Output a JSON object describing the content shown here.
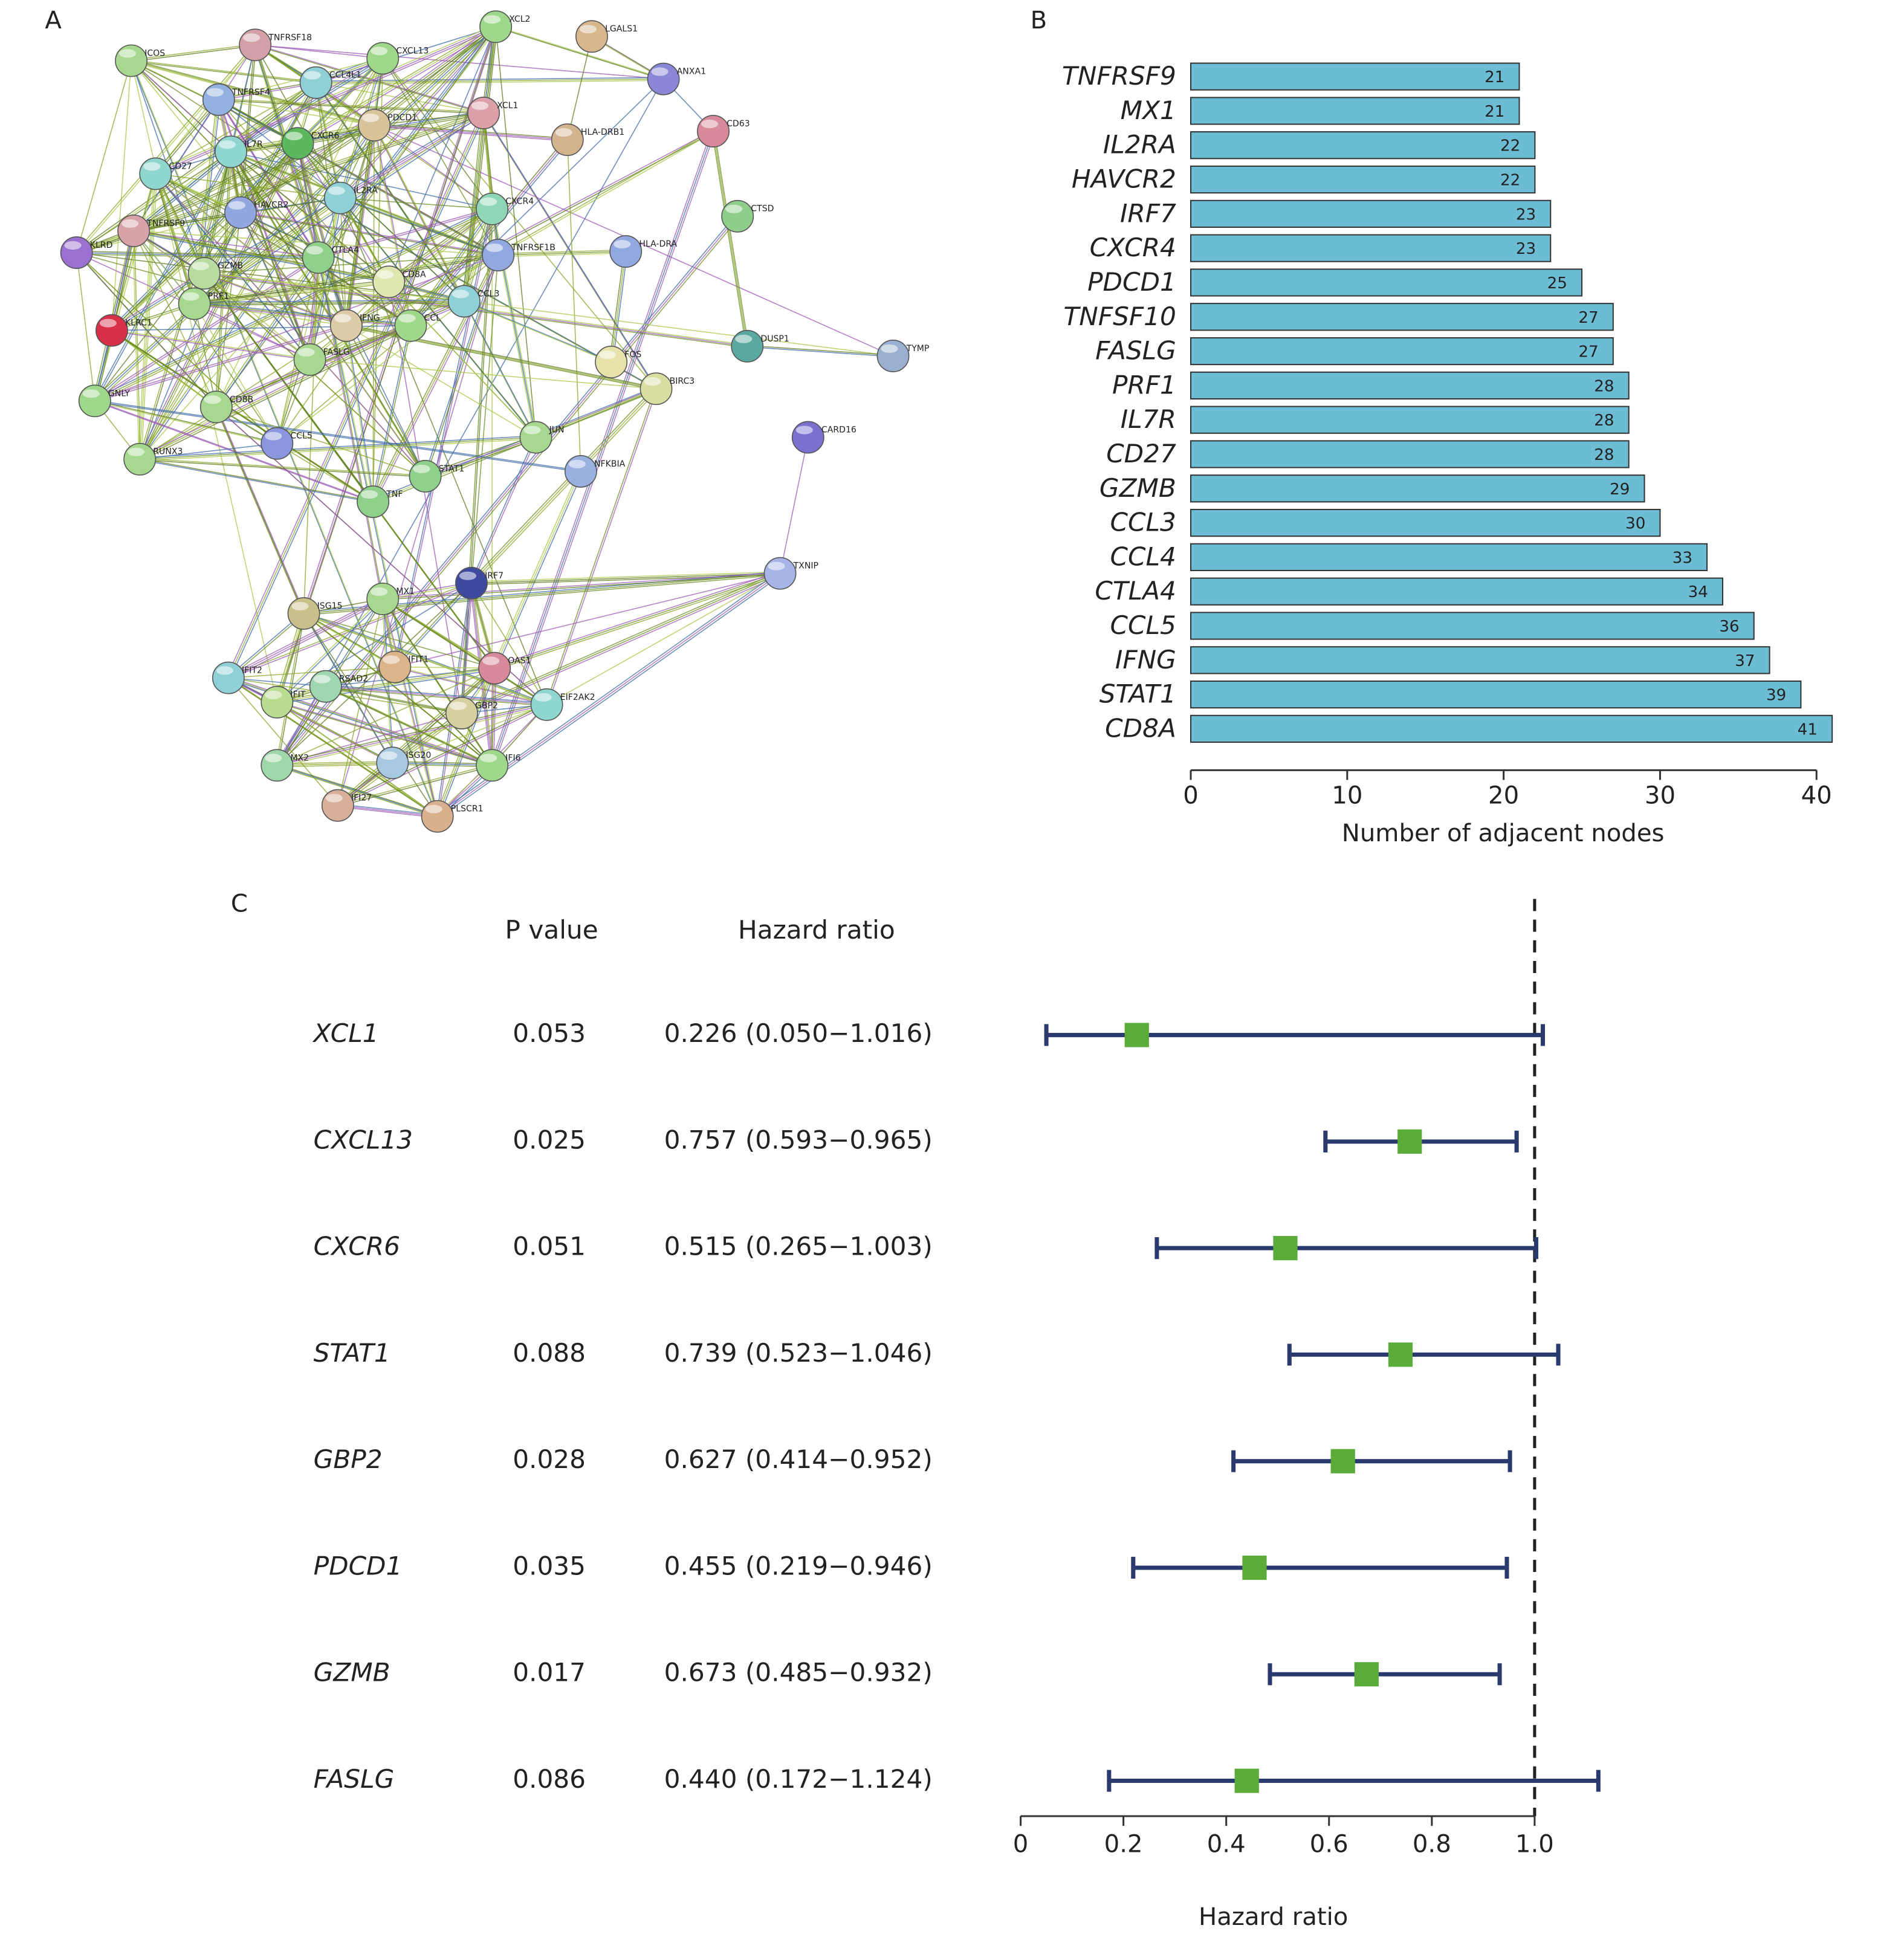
{
  "chart_data": [
    {
      "type": "network",
      "panel": "A",
      "nodes": [
        {
          "label": "ICOS",
          "color": "#a6d98f"
        },
        {
          "label": "TNFRSF18",
          "color": "#d3a0a8"
        },
        {
          "label": "CCL4L1",
          "color": "#8fd0d6"
        },
        {
          "label": "CXCL13",
          "color": "#9fd88a"
        },
        {
          "label": "XCL2",
          "color": "#9fd88a"
        },
        {
          "label": "LGALS1",
          "color": "#d8b68e"
        },
        {
          "label": "ANXA1",
          "color": "#8a86d8"
        },
        {
          "label": "TNFRSF4",
          "color": "#92b0e0"
        },
        {
          "label": "IL7R",
          "color": "#8fd6cf"
        },
        {
          "label": "CXCR6",
          "color": "#5cb85c"
        },
        {
          "label": "PDCD1",
          "color": "#d9c39a"
        },
        {
          "label": "XCL1",
          "color": "#dba0a8"
        },
        {
          "label": "HLA-DRB1",
          "color": "#d4b48f"
        },
        {
          "label": "CD63",
          "color": "#d88a9a"
        },
        {
          "label": "CD27",
          "color": "#8fd6cf"
        },
        {
          "label": "HAVCR2",
          "color": "#92a6e0"
        },
        {
          "label": "IL2RA",
          "color": "#8fd0d6"
        },
        {
          "label": "CXCR4",
          "color": "#8fd6b6"
        },
        {
          "label": "CTSD",
          "color": "#8fce8a"
        },
        {
          "label": "KLRD",
          "color": "#9a70d0"
        },
        {
          "label": "TNFRSF9",
          "color": "#d8a3a8"
        },
        {
          "label": "CTLA4",
          "color": "#8fd08a"
        },
        {
          "label": "TNFRSF1B",
          "color": "#92a8e0"
        },
        {
          "label": "HLA-DRA",
          "color": "#92a8e0"
        },
        {
          "label": "GZMB",
          "color": "#b8dca0"
        },
        {
          "label": "CD8A",
          "color": "#dfe6b0"
        },
        {
          "label": "PRF1",
          "color": "#a6d98f"
        },
        {
          "label": "CCL3",
          "color": "#8fd0d6"
        },
        {
          "label": "KLRC1",
          "color": "#d83048"
        },
        {
          "label": "IFNG",
          "color": "#dccba6"
        },
        {
          "label": "CCL",
          "color": "#9fd88a"
        },
        {
          "label": "FASLG",
          "color": "#a6d98f"
        },
        {
          "label": "FOS",
          "color": "#e6e2aa"
        },
        {
          "label": "DUSP1",
          "color": "#5aa8a0"
        },
        {
          "label": "TYMP",
          "color": "#9ab0d0"
        },
        {
          "label": "BIRC3",
          "color": "#d8dea0"
        },
        {
          "label": "GNLY",
          "color": "#9fd88a"
        },
        {
          "label": "CD8B",
          "color": "#a6d98f"
        },
        {
          "label": "CCL5",
          "color": "#8a96de"
        },
        {
          "label": "JUN",
          "color": "#a6d98f"
        },
        {
          "label": "CARD16",
          "color": "#7a70d0"
        },
        {
          "label": "RUNX3",
          "color": "#a6d98f"
        },
        {
          "label": "NFKBIA",
          "color": "#9ab0e0"
        },
        {
          "label": "STAT1",
          "color": "#8fd08a"
        },
        {
          "label": "TNF",
          "color": "#8fd08a"
        },
        {
          "label": "TXNIP",
          "color": "#a6b4e6"
        },
        {
          "label": "IRF7",
          "color": "#3d4aa0"
        },
        {
          "label": "ISG15",
          "color": "#c8c08a"
        },
        {
          "label": "MX1",
          "color": "#a6d98f"
        },
        {
          "label": "IFIT2",
          "color": "#8fd0d6"
        },
        {
          "label": "IFIT1",
          "color": "#dcb48a"
        },
        {
          "label": "OAS1",
          "color": "#d88a9a"
        },
        {
          "label": "RSAD2",
          "color": "#9fd8b0"
        },
        {
          "label": "IFIT",
          "color": "#b8dc90"
        },
        {
          "label": "GBP2",
          "color": "#d6d0a0"
        },
        {
          "label": "EIF2AK2",
          "color": "#8fd6d0"
        },
        {
          "label": "MX2",
          "color": "#9fd8a8"
        },
        {
          "label": "ISG20",
          "color": "#a6c8e0"
        },
        {
          "label": "IFI6",
          "color": "#9fd88a"
        },
        {
          "label": "IFI27",
          "color": "#d8b09a"
        },
        {
          "label": "PLSCR1",
          "color": "#d8b08e"
        }
      ]
    },
    {
      "type": "barh",
      "panel": "B",
      "xlabel": "Number of adjacent nodes",
      "color": "#6cbcd4",
      "categories": [
        "TNFRSF9",
        "MX1",
        "IL2RA",
        "HAVCR2",
        "IRF7",
        "CXCR4",
        "PDCD1",
        "TNFSF10",
        "FASLG",
        "PRF1",
        "IL7R",
        "CD27",
        "GZMB",
        "CCL3",
        "CCL4",
        "CTLA4",
        "CCL5",
        "IFNG",
        "STAT1",
        "CD8A"
      ],
      "values": [
        21,
        21,
        22,
        22,
        23,
        23,
        25,
        27,
        27,
        28,
        28,
        28,
        29,
        30,
        33,
        34,
        36,
        37,
        39,
        41
      ],
      "xlim": [
        0,
        40
      ],
      "xticks": [
        0,
        10,
        20,
        30,
        40
      ]
    },
    {
      "type": "forest",
      "panel": "C",
      "xlabel": "Hazard ratio",
      "p_header": "P value",
      "hr_header": "Hazard ratio",
      "categories": [
        "XCL1",
        "CXCL13",
        "CXCR6",
        "STAT1",
        "GBP2",
        "PDCD1",
        "GZMB",
        "FASLG"
      ],
      "p_values": [
        0.053,
        0.025,
        0.051,
        0.088,
        0.028,
        0.035,
        0.017,
        0.086
      ],
      "values": [
        0.226,
        0.757,
        0.515,
        0.739,
        0.627,
        0.455,
        0.673,
        0.44
      ],
      "lower": [
        0.05,
        0.593,
        0.265,
        0.523,
        0.414,
        0.219,
        0.485,
        0.172
      ],
      "upper": [
        1.016,
        0.965,
        1.003,
        1.046,
        0.952,
        0.946,
        0.932,
        1.124
      ],
      "value_labels": [
        "0.226 (0.050−1.016)",
        "0.757 (0.593−0.965)",
        "0.515 (0.265−1.003)",
        "0.739 (0.523−1.046)",
        "0.627 (0.414−0.952)",
        "0.455 (0.219−0.946)",
        "0.673 (0.485−0.932)",
        "0.440 (0.172−1.124)"
      ],
      "marker_color": "#5aab3a",
      "bar_color": "#2b3a6e",
      "reference_line": 1,
      "xlim": [
        0,
        1
      ],
      "xticks": [
        0,
        0.2,
        0.4,
        0.6,
        0.8,
        {
          "value": 1,
          "label": "1.0"
        }
      ]
    }
  ]
}
